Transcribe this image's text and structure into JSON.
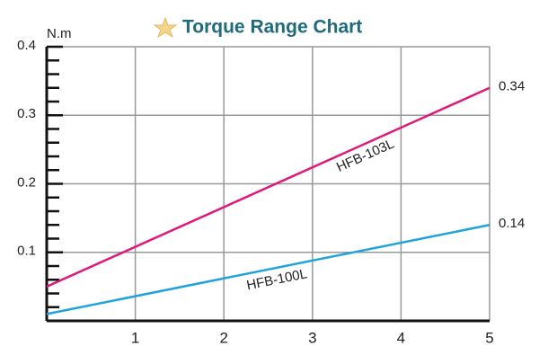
{
  "chart_data": {
    "type": "line",
    "title": "Torque Range Chart",
    "y_label": "N.m",
    "x": [
      0,
      5
    ],
    "series": [
      {
        "name": "HFB-103L",
        "color": "#e0187a",
        "values": [
          0.05,
          0.34
        ]
      },
      {
        "name": "HFB-100L",
        "color": "#1fa3dc",
        "values": [
          0.01,
          0.14
        ]
      }
    ],
    "xlim": [
      0,
      5
    ],
    "xticks": [
      1,
      2,
      3,
      4,
      5
    ],
    "ylim": [
      0,
      0.4
    ],
    "yticks": [
      0.1,
      0.2,
      0.3,
      0.4
    ],
    "minor_yticks": [
      0.02,
      0.04,
      0.06,
      0.08,
      0.12,
      0.14,
      0.16,
      0.18,
      0.22,
      0.24,
      0.26,
      0.28,
      0.32,
      0.34,
      0.36,
      0.38
    ],
    "grid": true
  }
}
